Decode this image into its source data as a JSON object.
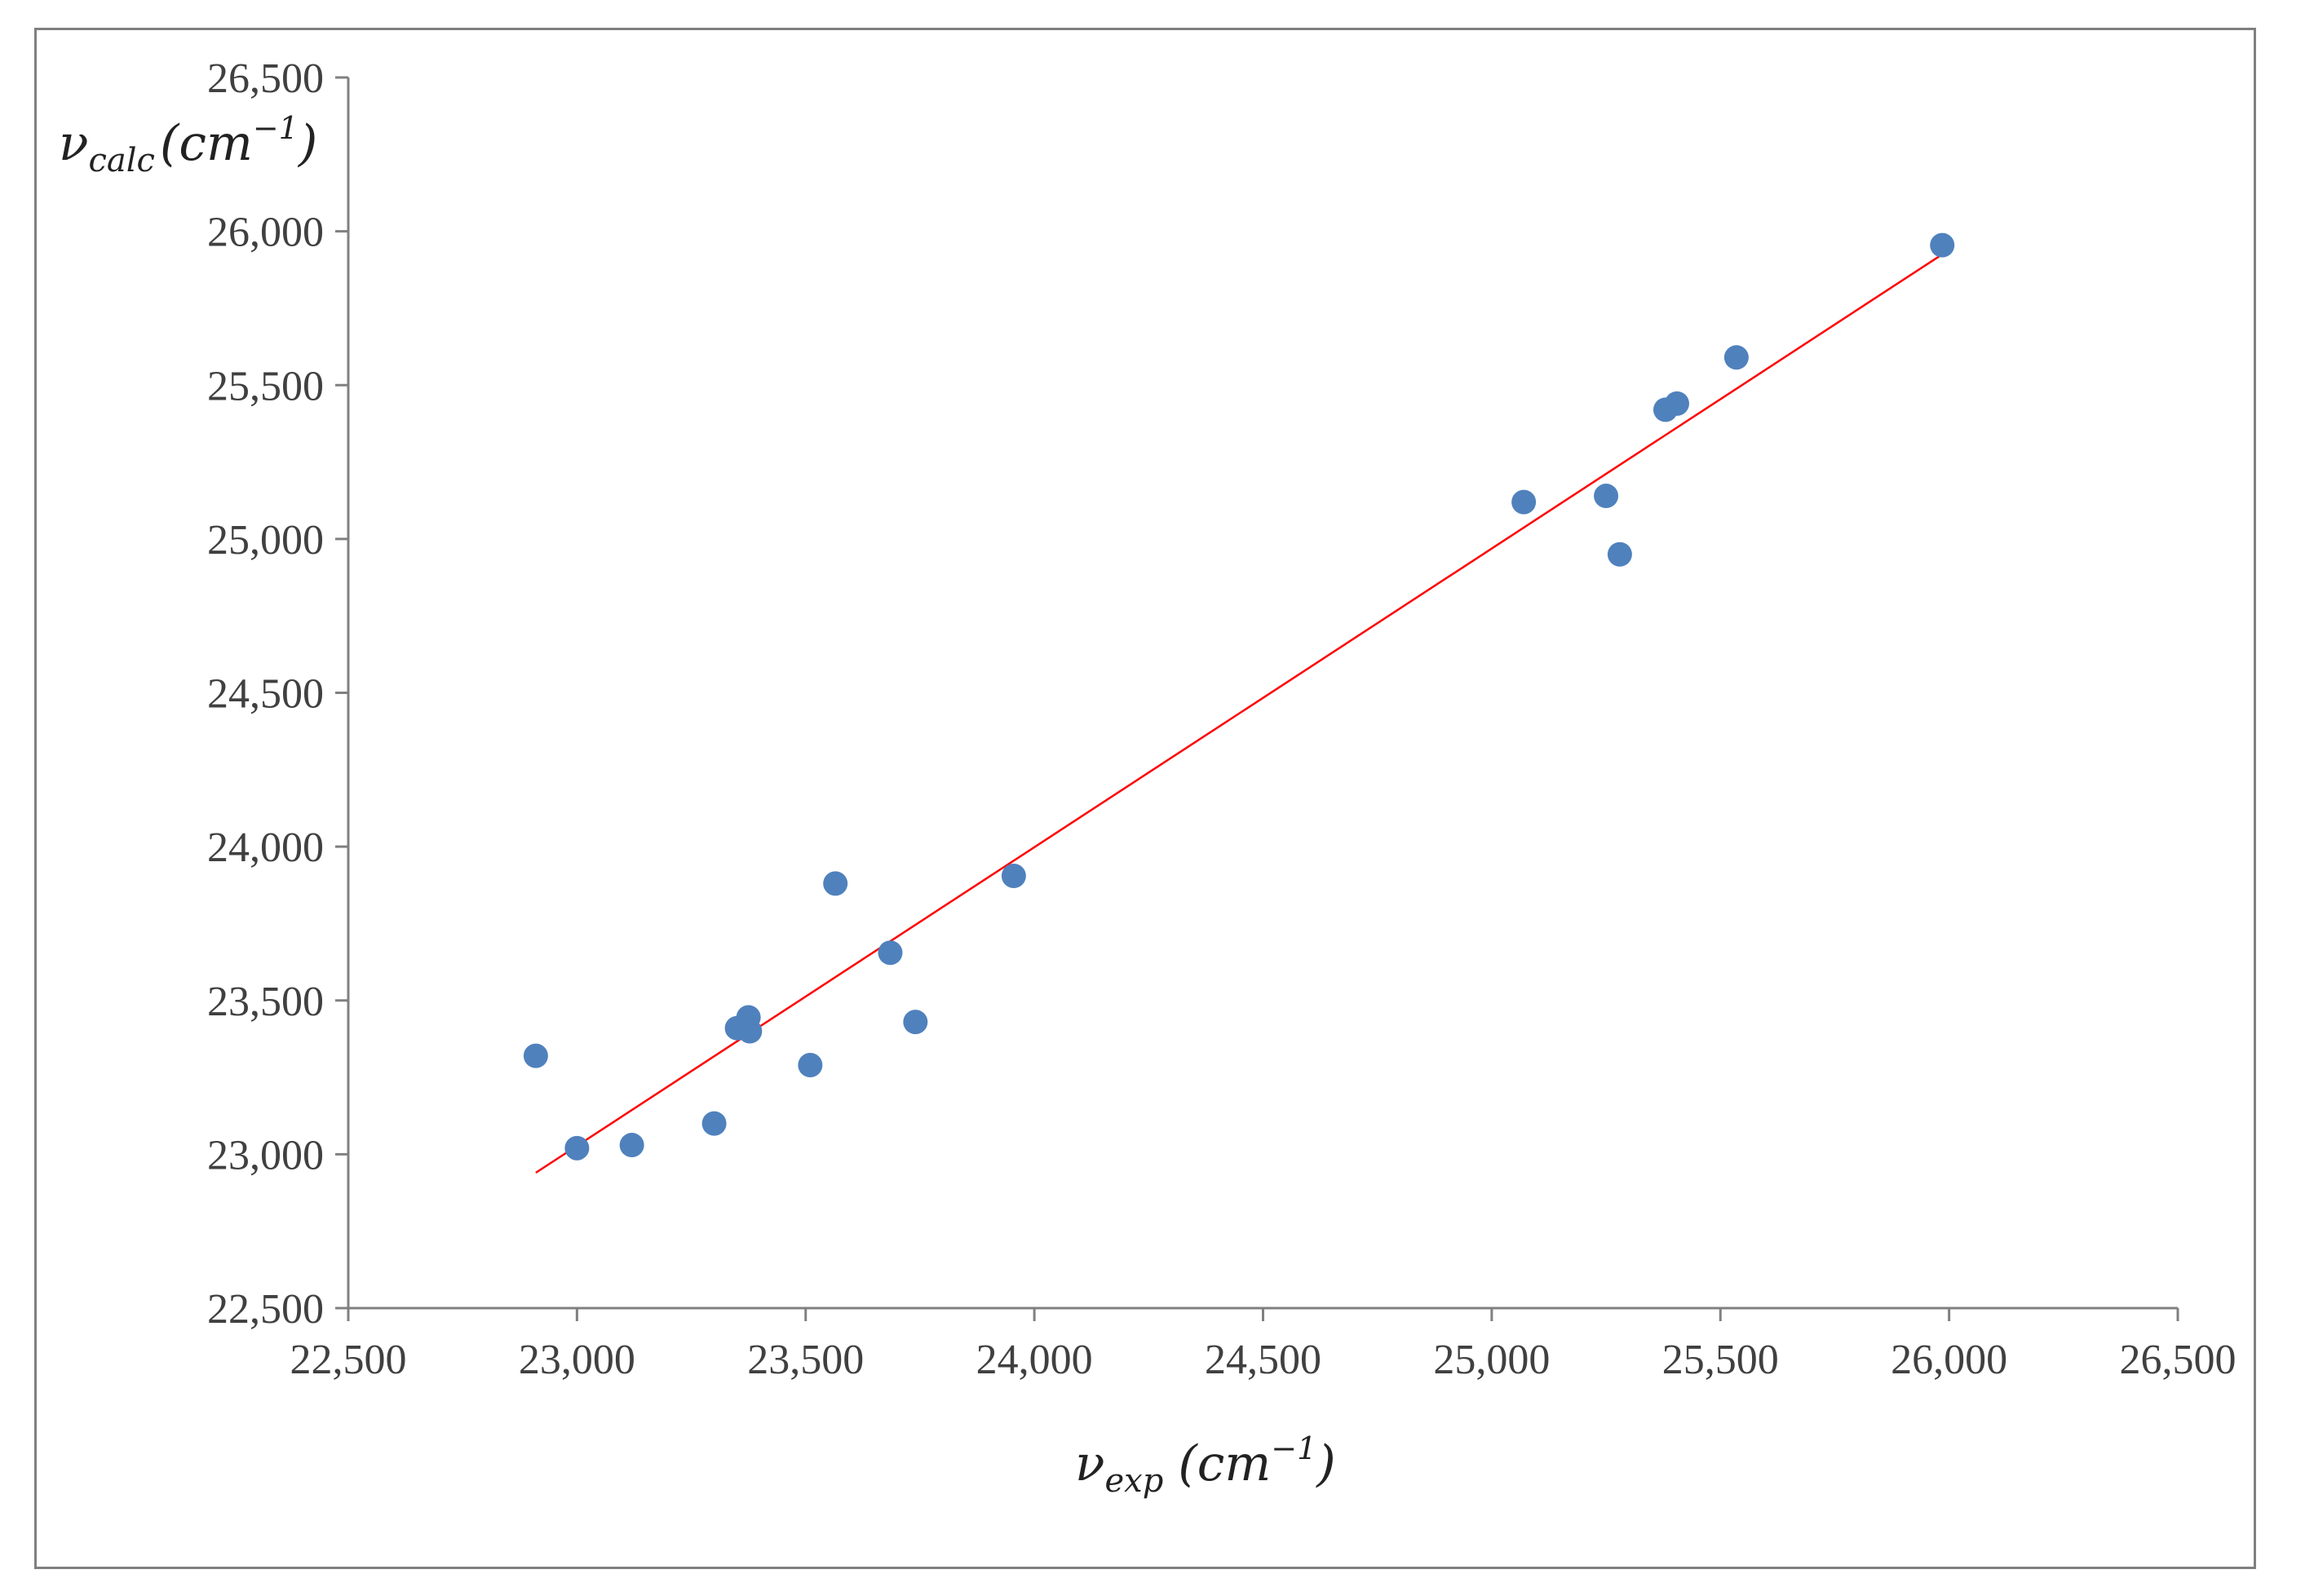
{
  "chart_data": {
    "type": "scatter",
    "title": "",
    "xlabel": {
      "base": "ν",
      "sub": "exp",
      "unit": "(cm",
      "exp": "−1",
      "close": ")"
    },
    "ylabel": {
      "base": "ν",
      "sub": "calc",
      "unit": "(cm",
      "exp": "−1",
      "close": ")"
    },
    "xlim": [
      22500,
      26500
    ],
    "ylim": [
      22500,
      26500
    ],
    "xticks": [
      22500,
      23000,
      23500,
      24000,
      24500,
      25000,
      25500,
      26000,
      26500
    ],
    "yticks": [
      22500,
      23000,
      23500,
      24000,
      24500,
      25000,
      25500,
      26000,
      26500
    ],
    "xtick_labels": [
      "22,500",
      "23,000",
      "23,500",
      "24,000",
      "24,500",
      "25,000",
      "25,500",
      "26,000",
      "26,500"
    ],
    "ytick_labels": [
      "22,500",
      "23,000",
      "23,500",
      "24,000",
      "24,500",
      "25,000",
      "25,500",
      "26,000",
      "26,500"
    ],
    "grid": false,
    "legend": "none",
    "series": [
      {
        "marker_color": "#4f81bd",
        "points": [
          [
            22910,
            23320
          ],
          [
            23000,
            23020
          ],
          [
            23120,
            23030
          ],
          [
            23300,
            23100
          ],
          [
            23350,
            23410
          ],
          [
            23375,
            23445
          ],
          [
            23378,
            23400
          ],
          [
            23510,
            23290
          ],
          [
            23565,
            23880
          ],
          [
            23685,
            23655
          ],
          [
            23740,
            23430
          ],
          [
            23955,
            23905
          ],
          [
            25070,
            25120
          ],
          [
            25250,
            25140
          ],
          [
            25280,
            24950
          ],
          [
            25380,
            25420
          ],
          [
            25405,
            25440
          ],
          [
            25535,
            25590
          ],
          [
            25985,
            25955
          ]
        ]
      }
    ],
    "trendline": {
      "color": "#ff0000",
      "x": [
        22910,
        25990
      ],
      "y": [
        22940,
        25930
      ]
    }
  }
}
